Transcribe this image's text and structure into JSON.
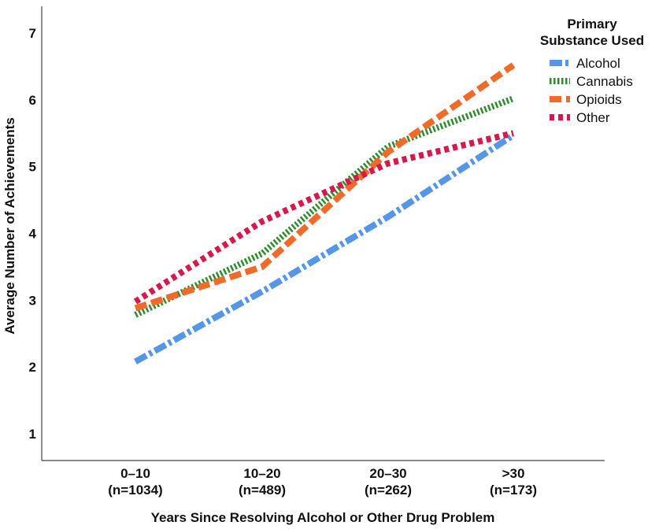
{
  "chart_data": {
    "type": "line",
    "xlabel": "Years Since Resolving Alcohol or Other Drug Problem",
    "ylabel": "Average Number of Achievements",
    "categories": [
      {
        "label": "0–10",
        "n": "(n=1034)"
      },
      {
        "label": "10–20",
        "n": "(n=489)"
      },
      {
        "label": "20–30",
        "n": "(n=262)"
      },
      {
        "label": ">30",
        "n": "(n=173)"
      }
    ],
    "ylim": [
      0.6,
      7.4
    ],
    "yticks": [
      "1",
      "2",
      "3",
      "4",
      "5",
      "6",
      "7"
    ],
    "legend": {
      "title_line1": "Primary",
      "title_line2": "Substance Used",
      "placement": "top-right"
    },
    "series": [
      {
        "name": "Alcohol",
        "values": [
          2.08,
          3.13,
          4.25,
          5.47
        ],
        "color": "#5596e6",
        "style": "dashdot"
      },
      {
        "name": "Cannabis",
        "values": [
          2.78,
          3.7,
          5.3,
          6.02
        ],
        "color": "#2e8b2e",
        "style": "dotted"
      },
      {
        "name": "Opioids",
        "values": [
          2.88,
          3.5,
          5.22,
          6.52
        ],
        "color": "#f06a2a",
        "style": "dashed"
      },
      {
        "name": "Other",
        "values": [
          2.98,
          4.18,
          5.05,
          5.5
        ],
        "color": "#d8174a",
        "style": "dotted-wide"
      }
    ]
  }
}
